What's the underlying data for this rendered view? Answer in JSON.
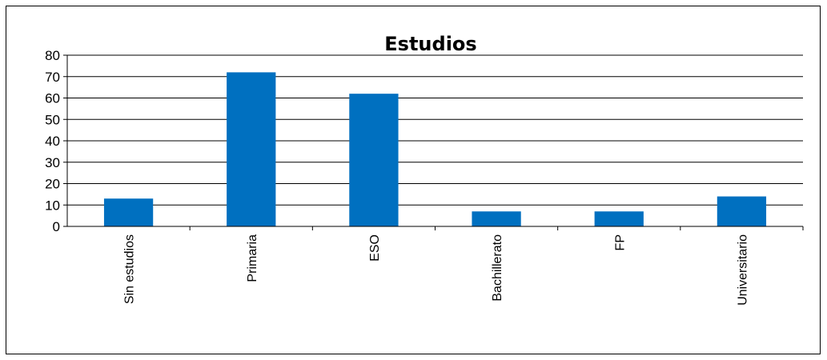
{
  "chart_data": {
    "type": "bar",
    "title": "Estudios",
    "xlabel": "",
    "ylabel": "",
    "categories": [
      "Sin estudios",
      "Primaria",
      "ESO",
      "Bachillerato",
      "FP",
      "Universitario"
    ],
    "values": [
      13,
      72,
      62,
      7,
      7,
      14
    ],
    "ylim": [
      0,
      80
    ],
    "yticks": [
      "0",
      "10",
      "20",
      "30",
      "40",
      "50",
      "60",
      "70",
      "80"
    ],
    "grid": true,
    "legend": "none",
    "bar_color": "#0070C0"
  }
}
